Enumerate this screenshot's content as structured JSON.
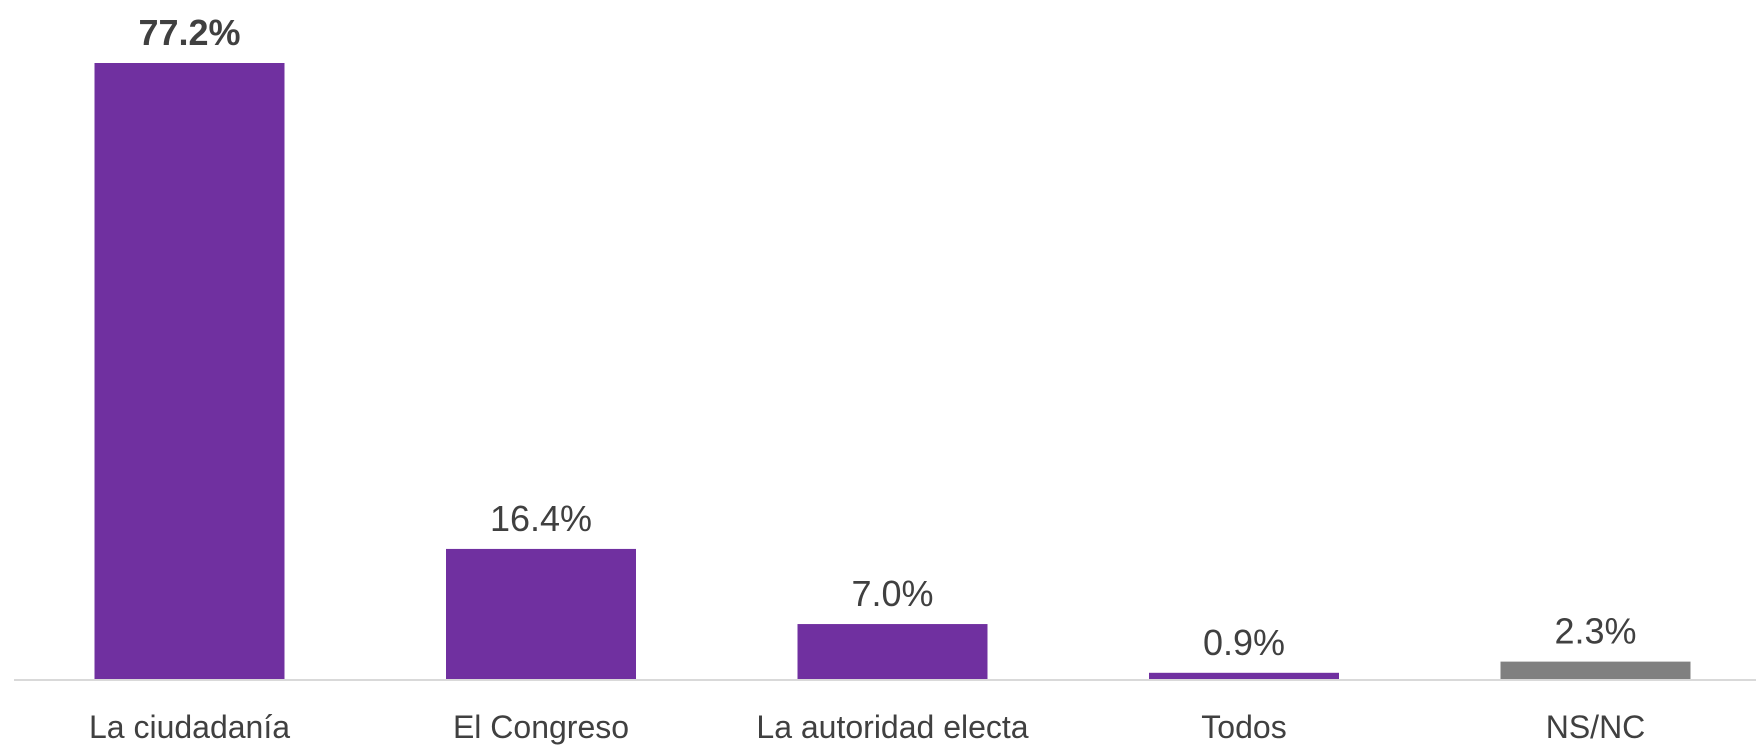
{
  "chart_data": {
    "type": "bar",
    "categories": [
      "La ciudadanía",
      "El Congreso",
      "La autoridad electa",
      "Todos",
      "NS/NC"
    ],
    "values": [
      77.2,
      16.4,
      7.0,
      0.9,
      2.3
    ],
    "value_labels": [
      "77.2%",
      "16.4%",
      "7.0%",
      "0.9%",
      "2.3%"
    ],
    "bold_labels": [
      true,
      false,
      false,
      false,
      false
    ],
    "bar_colors": [
      "#7030A0",
      "#7030A0",
      "#7030A0",
      "#7030A0",
      "#808080"
    ],
    "axis_color": "#D9D9D9",
    "ylim": [
      0,
      77.2
    ],
    "title": "",
    "xlabel": "",
    "ylabel": "",
    "grid": false,
    "legend": "none"
  }
}
